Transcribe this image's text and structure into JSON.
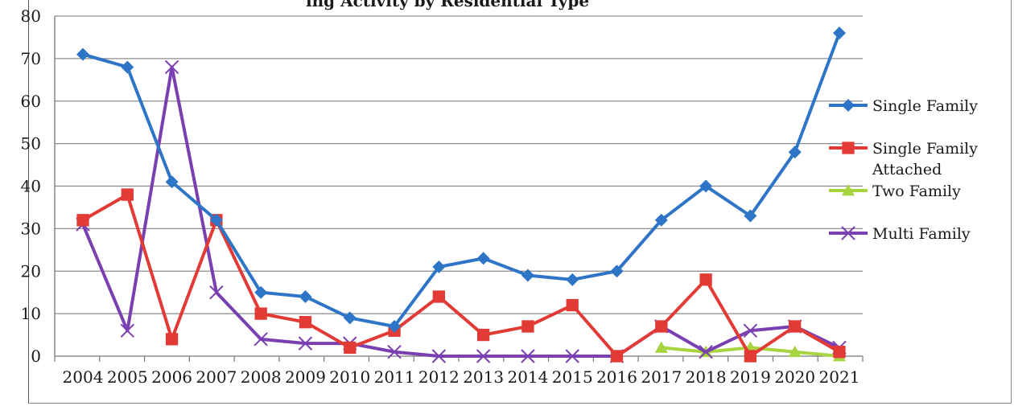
{
  "chart_data": {
    "type": "line",
    "title": "",
    "xlabel": "",
    "ylabel": "",
    "categories": [
      "2004",
      "2005",
      "2006",
      "2007",
      "2008",
      "2009",
      "2010",
      "2011",
      "2012",
      "2013",
      "2014",
      "2015",
      "2016",
      "2017",
      "2018",
      "2019",
      "2020",
      "2021"
    ],
    "ylim": [
      0,
      80
    ],
    "yticks": [
      0,
      10,
      20,
      30,
      40,
      50,
      60,
      70,
      80
    ],
    "grid": true,
    "legend_position": "right",
    "series": [
      {
        "name": "Single Family",
        "color": "#2e75c7",
        "marker": "diamond",
        "values": [
          71,
          68,
          41,
          32,
          15,
          14,
          9,
          7,
          21,
          23,
          19,
          18,
          20,
          32,
          40,
          33,
          48,
          76
        ]
      },
      {
        "name": "Single Family Attached",
        "color": "#e23a35",
        "marker": "square",
        "values": [
          32,
          38,
          4,
          32,
          10,
          8,
          2,
          6,
          14,
          5,
          7,
          12,
          0,
          7,
          18,
          0,
          7,
          1
        ]
      },
      {
        "name": "Two Family",
        "color": "#a8d43f",
        "marker": "triangle",
        "values": [
          null,
          null,
          null,
          null,
          null,
          null,
          null,
          null,
          null,
          null,
          null,
          null,
          null,
          2,
          1,
          2,
          1,
          0
        ]
      },
      {
        "name": "Multi Family",
        "color": "#7a3fb0",
        "marker": "x",
        "values": [
          31,
          6,
          68,
          15,
          4,
          3,
          3,
          1,
          0,
          0,
          0,
          0,
          0,
          7,
          1,
          6,
          7,
          2
        ]
      }
    ]
  },
  "legend": {
    "items": [
      {
        "label_lines": [
          "Single Family"
        ]
      },
      {
        "label_lines": [
          "Single Family",
          "Attached"
        ]
      },
      {
        "label_lines": [
          "Two Family"
        ]
      },
      {
        "label_lines": [
          "Multi Family"
        ]
      }
    ]
  },
  "partial_title": "ing Activity by Residential Type"
}
